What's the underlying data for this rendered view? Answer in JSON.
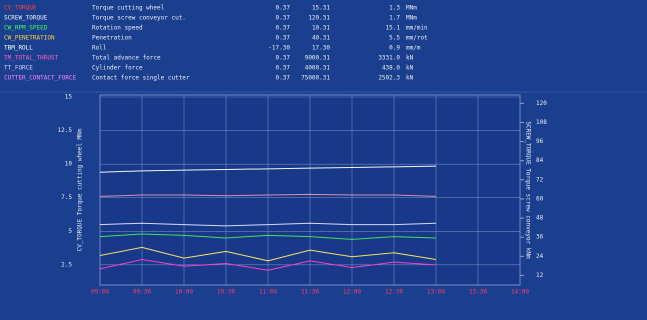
{
  "header": {
    "rows": [
      {
        "name": "CV_TORQUE",
        "color": "#ff4040",
        "description": "Torque cutting wheel",
        "min": "0.37",
        "max": "15.31",
        "value": "1.3",
        "unit": "MNm"
      },
      {
        "name": "SCREW_TORQUE",
        "color": "#f0f0f0",
        "description": "Torque screw conveyor cut.",
        "min": "0.37",
        "max": "120.31",
        "value": "1.7",
        "unit": "MNm"
      },
      {
        "name": "CW_RPM_SPEED",
        "color": "#40ff60",
        "description": "Rotation speed",
        "min": "0.37",
        "max": "10.31",
        "value": "15.1",
        "unit": "mm/min"
      },
      {
        "name": "CW_PENETRATION",
        "color": "#ffd040",
        "description": "Penetration",
        "min": "0.37",
        "max": "40.31",
        "value": "5.5",
        "unit": "mm/rot"
      },
      {
        "name": "TBM_ROLL",
        "color": "#ffffff",
        "description": "Roll",
        "min": "-17.30",
        "max": "17.30",
        "value": "0.9",
        "unit": "mm/m"
      },
      {
        "name": "TM_TOTAL_THRUST",
        "color": "#ff60c0",
        "description": "Total advance force",
        "min": "0.37",
        "max": "9000.31",
        "value": "3331.0",
        "unit": "kN"
      },
      {
        "name": "TT_FORCE",
        "color": "#d0d0ff",
        "description": "Cylinder force",
        "min": "0.37",
        "max": "4000.31",
        "value": "438.0",
        "unit": "kN"
      },
      {
        "name": "CUTTER_CONTACT_FORCE",
        "color": "#ff80ff",
        "description": "Contact force single cutter",
        "min": "0.37",
        "max": "75000.31",
        "value": "2502.3",
        "unit": "kN"
      }
    ]
  },
  "chart_data": {
    "type": "line",
    "y_label": "CV_TORQUE Torque cutting wheel MNm",
    "y2_label": "SCREW_TORQUE Torque screw conveyor kNm",
    "x": [
      "09:00",
      "09:30",
      "10:00",
      "10:30",
      "11:00",
      "11:30",
      "12:00",
      "12:30",
      "13:00",
      "13:30",
      "14:00"
    ],
    "ylim": [
      1,
      15
    ],
    "yticks": [
      2.5,
      5,
      7.5,
      10,
      12.5,
      15
    ],
    "y2lim": [
      6,
      124
    ],
    "y2ticks": [
      12,
      24,
      36,
      48,
      60,
      72,
      84,
      96,
      108,
      120
    ],
    "grid": true,
    "series": [
      {
        "name": "SCREW_TORQUE",
        "color": "#f4f4f4",
        "values": [
          9.4,
          9.5,
          9.55,
          9.6,
          9.65,
          9.7,
          9.75,
          9.8,
          9.85,
          null,
          null
        ]
      },
      {
        "name": "TT_FORCE",
        "color": "#d890b8",
        "values": [
          7.6,
          7.7,
          7.7,
          7.65,
          7.7,
          7.75,
          7.7,
          7.7,
          7.6,
          null,
          null
        ]
      },
      {
        "name": "TBM_ROLL",
        "color": "#d8d8ff",
        "values": [
          5.5,
          5.6,
          5.5,
          5.4,
          5.5,
          5.6,
          5.5,
          5.5,
          5.6,
          null,
          null
        ]
      },
      {
        "name": "CW_RPM_SPEED",
        "color": "#40e060",
        "values": [
          4.6,
          4.8,
          4.7,
          4.5,
          4.7,
          4.6,
          4.4,
          4.6,
          4.5,
          null,
          null
        ]
      },
      {
        "name": "CW_PENETRATION",
        "color": "#ffe060",
        "values": [
          3.2,
          3.8,
          3.0,
          3.5,
          2.8,
          3.6,
          3.1,
          3.4,
          2.9,
          null,
          null
        ]
      },
      {
        "name": "CUTTER_CONTACT_FORCE",
        "color": "#ff3cc8",
        "values": [
          2.2,
          2.9,
          2.4,
          2.6,
          2.1,
          2.8,
          2.3,
          2.7,
          2.5,
          null,
          null
        ]
      }
    ]
  }
}
